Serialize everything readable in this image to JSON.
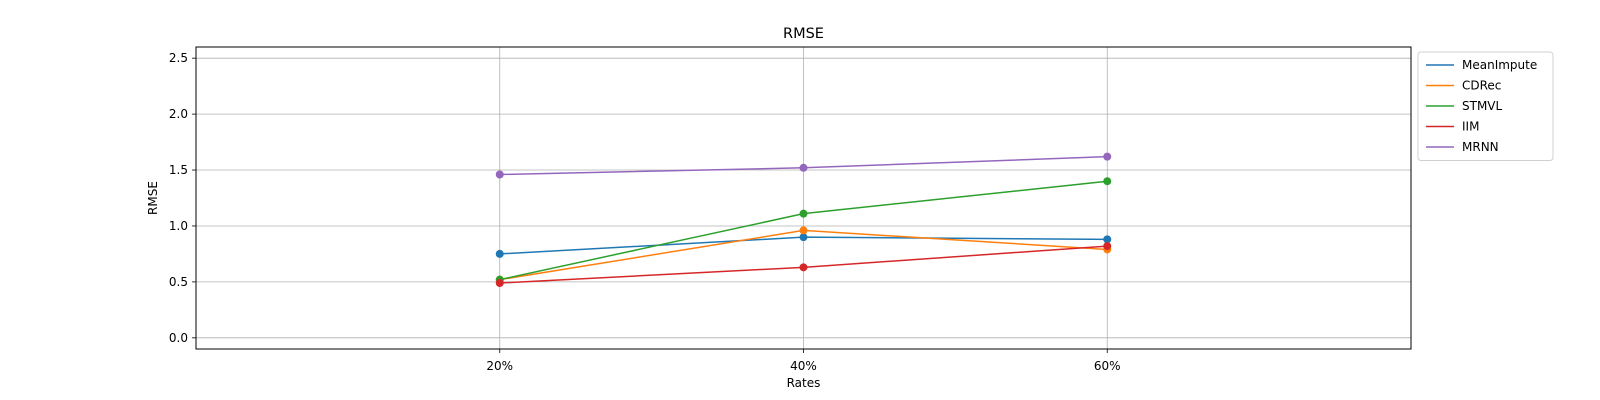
{
  "chart_data": {
    "type": "line",
    "title": "RMSE",
    "xlabel": "Rates",
    "ylabel": "RMSE",
    "categories": [
      "20%",
      "40%",
      "60%"
    ],
    "ylim": [
      -0.1,
      2.6
    ],
    "yticks": [
      "0.0",
      "0.5",
      "1.0",
      "1.5",
      "2.0",
      "2.5"
    ],
    "ytick_values": [
      0,
      0.5,
      1.0,
      1.5,
      2.0,
      2.5
    ],
    "grid": true,
    "legend_position": "outside-top-right",
    "markers": true,
    "series": [
      {
        "name": "MeanImpute",
        "color": "#1f77b4",
        "values": [
          0.75,
          0.9,
          0.88
        ]
      },
      {
        "name": "CDRec",
        "color": "#ff7f0e",
        "values": [
          0.52,
          0.96,
          0.79
        ]
      },
      {
        "name": "STMVL",
        "color": "#2ca02c",
        "values": [
          0.52,
          1.11,
          1.4
        ]
      },
      {
        "name": "IIM",
        "color": "#d62728",
        "values": [
          0.49,
          0.63,
          0.82
        ]
      },
      {
        "name": "MRNN",
        "color": "#9467bd",
        "values": [
          1.46,
          1.52,
          1.62
        ]
      }
    ]
  }
}
